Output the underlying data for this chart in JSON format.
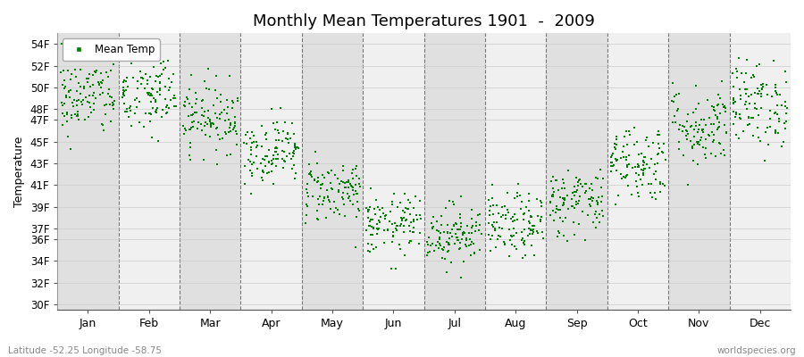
{
  "title": "Monthly Mean Temperatures 1901  -  2009",
  "ylabel": "Temperature",
  "subtitle": "Latitude -52.25 Longitude -58.75",
  "watermark": "worldspecies.org",
  "yticks": [
    30,
    32,
    34,
    36,
    37,
    39,
    41,
    43,
    45,
    47,
    48,
    50,
    52,
    54
  ],
  "ylim": [
    29.5,
    55.0
  ],
  "months": [
    "Jan",
    "Feb",
    "Mar",
    "Apr",
    "May",
    "Jun",
    "Jul",
    "Aug",
    "Sep",
    "Oct",
    "Nov",
    "Dec"
  ],
  "dot_color": "#008000",
  "dot_size": 3,
  "background_color": "#ffffff",
  "band_color_dark": "#e0e0e0",
  "band_color_light": "#f0f0f0",
  "mean_temps_f": [
    49.1,
    49.3,
    47.3,
    44.2,
    40.5,
    37.3,
    36.5,
    37.2,
    39.5,
    43.1,
    46.4,
    48.5
  ],
  "std_temps_f": [
    1.8,
    2.0,
    1.6,
    1.5,
    1.5,
    1.4,
    1.4,
    1.5,
    1.6,
    1.8,
    1.9,
    2.0
  ],
  "n_years": 109,
  "legend_label": "Mean Temp"
}
